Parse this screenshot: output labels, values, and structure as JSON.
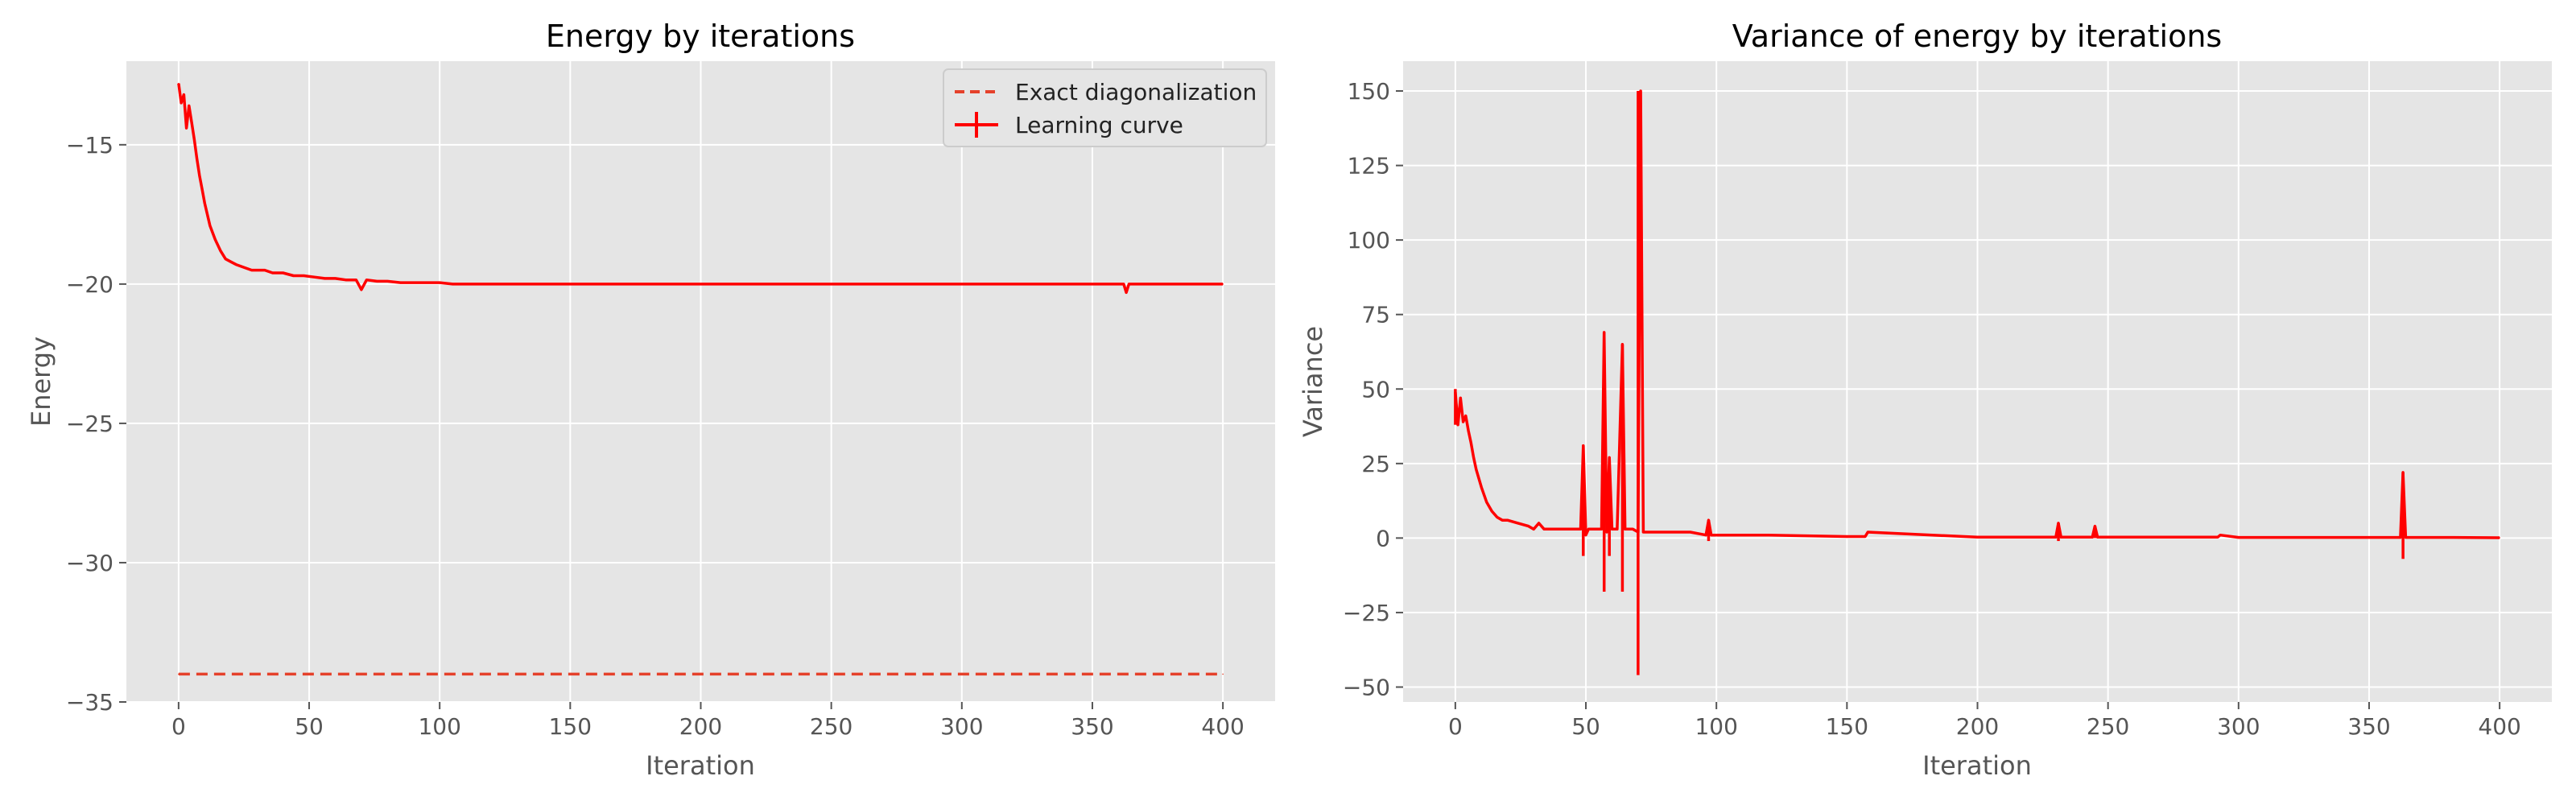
{
  "chart_data": [
    {
      "type": "line",
      "title": "Energy by iterations",
      "xlabel": "Iteration",
      "ylabel": "Energy",
      "xlim": [
        -20,
        420
      ],
      "ylim": [
        -35,
        -12
      ],
      "xticks": [
        0,
        50,
        100,
        150,
        200,
        250,
        300,
        350,
        400
      ],
      "yticks": [
        -35,
        -30,
        -25,
        -20,
        -15
      ],
      "xtick_labels": [
        "0",
        "50",
        "100",
        "150",
        "200",
        "250",
        "300",
        "350",
        "400"
      ],
      "ytick_labels": [
        "−35",
        "−30",
        "−25",
        "−20",
        "−15"
      ],
      "grid": true,
      "legend": "top-right",
      "series": [
        {
          "name": "Exact diagonalization",
          "style": "dashed",
          "color": "#e5412b",
          "x": [
            0,
            400
          ],
          "y": [
            -34.0,
            -34.0
          ]
        },
        {
          "name": "Learning curve",
          "style": "solid-errorbar",
          "color": "#ff0000",
          "x": [
            0,
            1,
            2,
            3,
            4,
            5,
            6,
            7,
            8,
            9,
            10,
            12,
            14,
            16,
            18,
            20,
            22,
            25,
            28,
            30,
            33,
            36,
            40,
            44,
            48,
            52,
            56,
            60,
            64,
            68,
            70,
            72,
            76,
            80,
            85,
            90,
            95,
            100,
            105,
            110,
            120,
            130,
            140,
            150,
            175,
            200,
            225,
            250,
            275,
            300,
            325,
            350,
            362,
            363,
            364,
            380,
            400
          ],
          "y": [
            -12.8,
            -13.5,
            -13.2,
            -14.4,
            -13.6,
            -14.2,
            -14.8,
            -15.5,
            -16.1,
            -16.6,
            -17.1,
            -17.9,
            -18.4,
            -18.8,
            -19.1,
            -19.2,
            -19.3,
            -19.4,
            -19.5,
            -19.5,
            -19.5,
            -19.6,
            -19.6,
            -19.7,
            -19.7,
            -19.75,
            -19.8,
            -19.8,
            -19.85,
            -19.85,
            -20.2,
            -19.85,
            -19.9,
            -19.9,
            -19.95,
            -19.95,
            -19.95,
            -19.95,
            -20.0,
            -20.0,
            -20.0,
            -20.0,
            -20.0,
            -20.0,
            -20.0,
            -20.0,
            -20.0,
            -20.0,
            -20.0,
            -20.0,
            -20.0,
            -20.0,
            -20.0,
            -20.3,
            -20.0,
            -20.0,
            -20.0
          ]
        }
      ]
    },
    {
      "type": "line",
      "title": "Variance of energy by iterations",
      "xlabel": "Iteration",
      "ylabel": "Variance",
      "xlim": [
        -20,
        420
      ],
      "ylim": [
        -55,
        160
      ],
      "xticks": [
        0,
        50,
        100,
        150,
        200,
        250,
        300,
        350,
        400
      ],
      "yticks": [
        -50,
        -25,
        0,
        25,
        50,
        75,
        100,
        125,
        150
      ],
      "xtick_labels": [
        "0",
        "50",
        "100",
        "150",
        "200",
        "250",
        "300",
        "350",
        "400"
      ],
      "ytick_labels": [
        "−50",
        "−25",
        "0",
        "25",
        "50",
        "75",
        "100",
        "125",
        "150"
      ],
      "grid": true,
      "series": [
        {
          "name": "",
          "style": "solid",
          "color": "#ff0000",
          "x": [
            0,
            1,
            2,
            3,
            4,
            5,
            6,
            7,
            8,
            10,
            12,
            14,
            16,
            18,
            20,
            24,
            28,
            30,
            32,
            34,
            36,
            40,
            44,
            48,
            49,
            50,
            51,
            52,
            54,
            56,
            57,
            58,
            59,
            60,
            62,
            64,
            65,
            66,
            68,
            70,
            71,
            72,
            76,
            80,
            90,
            96,
            97,
            98,
            100,
            120,
            150,
            157,
            158,
            200,
            230,
            231,
            232,
            244,
            245,
            246,
            292,
            293,
            300,
            350,
            362,
            363,
            364,
            380,
            400
          ],
          "y": [
            49,
            38,
            47,
            39,
            41,
            36,
            32,
            27,
            23,
            17,
            12,
            9,
            7,
            6,
            6,
            5,
            4,
            3,
            5,
            3,
            3,
            3,
            3,
            3,
            31,
            1,
            3,
            3,
            3,
            3,
            69,
            2,
            27,
            3,
            3,
            65,
            3,
            3,
            3,
            2,
            150,
            2,
            2,
            2,
            2,
            1,
            6,
            1,
            1,
            1,
            0.5,
            0.5,
            2,
            0.3,
            0.3,
            5,
            0.3,
            0.3,
            4,
            0.3,
            0.3,
            1,
            0.2,
            0.2,
            0.2,
            22,
            0.2,
            0.2,
            0.1
          ],
          "errorbars": [
            {
              "x": 0,
              "low": 38,
              "high": 50
            },
            {
              "x": 49,
              "low": -6,
              "high": 31
            },
            {
              "x": 57,
              "low": -18,
              "high": 69
            },
            {
              "x": 59,
              "low": -6,
              "high": 27
            },
            {
              "x": 64,
              "low": -18,
              "high": 65
            },
            {
              "x": 70,
              "low": -46,
              "high": 150
            },
            {
              "x": 97,
              "low": -1,
              "high": 6
            },
            {
              "x": 231,
              "low": -1,
              "high": 5
            },
            {
              "x": 245,
              "low": 0,
              "high": 4
            },
            {
              "x": 363,
              "low": -7,
              "high": 22
            }
          ]
        }
      ]
    }
  ]
}
